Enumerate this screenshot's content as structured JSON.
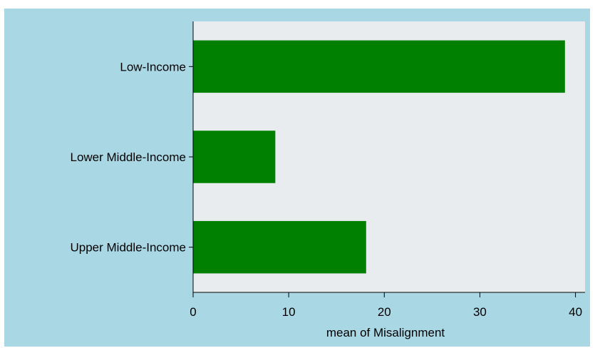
{
  "chart_data": {
    "type": "bar",
    "orientation": "horizontal",
    "categories": [
      "Low-Income",
      "Lower Middle-Income",
      "Upper Middle-Income"
    ],
    "values": [
      38.9,
      8.6,
      18.1
    ],
    "xlabel": "mean of Misalignment",
    "xlim": [
      0,
      41
    ],
    "xticks": [
      "0",
      "10",
      "20",
      "30",
      "40"
    ],
    "grid": false,
    "legend": "none"
  },
  "colors": {
    "bar": "#008000",
    "plot_background": "#e8ecef",
    "outer_background": "#a9d7e4",
    "axis": "#000000"
  }
}
